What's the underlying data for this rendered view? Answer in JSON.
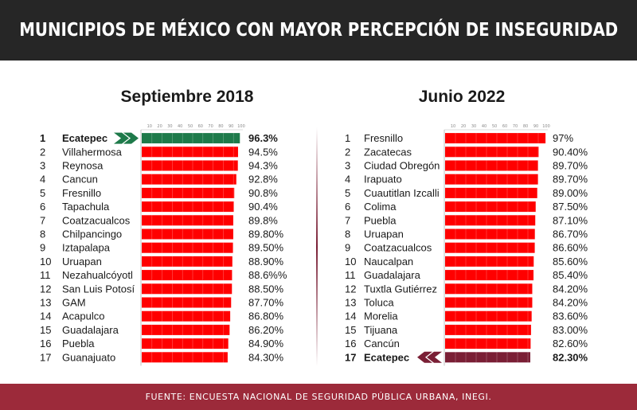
{
  "title": "MUNICIPIOS DE MÉXICO CON MAYOR PERCEPCIÓN DE INSEGURIDAD",
  "source": "FUENTE: ENCUESTA NACIONAL DE SEGURIDAD PÚBLICA URBANA, INEGI.",
  "colors": {
    "bar": "#ff0000",
    "highlight_2018": "#1e7a4a",
    "highlight_2022": "#7a1f35",
    "header_bg": "#262626",
    "footer_bg": "#9c2a3a"
  },
  "chart_data": [
    {
      "type": "bar",
      "title": "Septiembre 2018",
      "xlim": [
        0,
        100
      ],
      "ticks": [
        "10",
        "20",
        "30",
        "40",
        "50",
        "60",
        "70",
        "80",
        "90",
        "100"
      ],
      "highlight": "Ecatepec",
      "ranks": [
        "1",
        "2",
        "3",
        "4",
        "5",
        "6",
        "7",
        "8",
        "9",
        "10",
        "11",
        "12",
        "13",
        "14",
        "15",
        "16",
        "17"
      ],
      "categories": [
        "Ecatepec",
        "Villahermosa",
        "Reynosa",
        "Cancun",
        "Fresnillo",
        "Tapachula",
        "Coatzacualcos",
        "Chilpancingo",
        "Iztapalapa",
        "Uruapan",
        "Nezahualcóyotl",
        "San Luis Potosí",
        "GAM",
        "Acapulco",
        "Guadalajara",
        "Puebla",
        "Guanajuato"
      ],
      "values": [
        96.3,
        94.5,
        94.3,
        92.8,
        90.8,
        90.4,
        89.8,
        89.8,
        89.5,
        88.9,
        88.6,
        88.5,
        87.7,
        86.8,
        86.2,
        84.9,
        84.3
      ],
      "labels": [
        "96.3%",
        "94.5%",
        "94.3%",
        "92.8%",
        "90.8%",
        "90.4%",
        "89.8%",
        "89.80%",
        "89.50%",
        "88.90%",
        "88.6%%",
        "88.50%",
        "87.70%",
        "86.80%",
        "86.20%",
        "84.90%",
        "84.30%"
      ]
    },
    {
      "type": "bar",
      "title": "Junio 2022",
      "xlim": [
        0,
        100
      ],
      "ticks": [
        "10",
        "20",
        "30",
        "40",
        "50",
        "60",
        "70",
        "80",
        "90",
        "100"
      ],
      "highlight": "Ecatepec",
      "ranks": [
        "1",
        "2",
        "3",
        "4",
        "5",
        "6",
        "7",
        "8",
        "9",
        "10",
        "11",
        "12",
        "13",
        "14",
        "15",
        "16",
        "17"
      ],
      "categories": [
        "Fresnillo",
        "Zacatecas",
        "Ciudad Obregón",
        "Irapuato",
        "Cuautitlan Izcalli",
        "Colima",
        "Puebla",
        "Uruapan",
        "Coatzacualcos",
        "Naucalpan",
        "Guadalajara",
        "Tuxtla Gutiérrez",
        "Toluca",
        "Morelia",
        "Tijuana",
        "Cancún",
        "Ecatepec"
      ],
      "values": [
        97,
        90.4,
        89.7,
        89.7,
        89.0,
        87.5,
        87.1,
        86.7,
        86.6,
        85.6,
        85.4,
        84.2,
        84.2,
        83.6,
        83.0,
        82.6,
        82.3
      ],
      "labels": [
        "97%",
        "90.40%",
        "89.70%",
        "89.70%",
        "89.00%",
        "87.50%",
        "87.10%",
        "86.70%",
        "86.60%",
        "85.60%",
        "85.40%",
        "84.20%",
        "84.20%",
        "83.60%",
        "83.00%",
        "82.60%",
        "82.30%"
      ]
    }
  ]
}
